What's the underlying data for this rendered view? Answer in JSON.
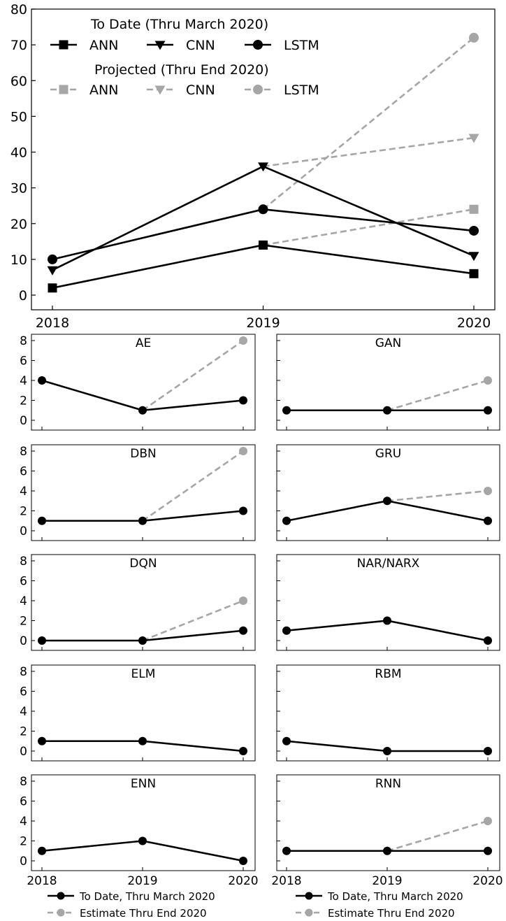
{
  "colors": {
    "to_date": "#000000",
    "projected": "#a6a6a6"
  },
  "chart_data": [
    {
      "type": "line",
      "x": [
        "2018",
        "2019",
        "2020"
      ],
      "ylim": [
        0,
        80
      ],
      "yticks": [
        0,
        10,
        20,
        30,
        40,
        50,
        60,
        70,
        80
      ],
      "grid": false,
      "legend": {
        "to_date_title": "To Date (Thru March 2020)",
        "projected_title": "Projected (Thru End 2020)",
        "placement": "top"
      },
      "series": [
        {
          "name": "ANN",
          "kind": "to_date",
          "marker": "square",
          "values": [
            2,
            14,
            6
          ]
        },
        {
          "name": "CNN",
          "kind": "to_date",
          "marker": "triangle-down",
          "values": [
            7,
            36,
            11
          ]
        },
        {
          "name": "LSTM",
          "kind": "to_date",
          "marker": "circle",
          "values": [
            10,
            24,
            18
          ]
        },
        {
          "name": "ANN",
          "kind": "projected",
          "marker": "square",
          "values": [
            null,
            14,
            24
          ]
        },
        {
          "name": "CNN",
          "kind": "projected",
          "marker": "triangle-down",
          "values": [
            null,
            36,
            44
          ]
        },
        {
          "name": "LSTM",
          "kind": "projected",
          "marker": "circle",
          "values": [
            null,
            24,
            72
          ]
        }
      ]
    },
    {
      "type": "line",
      "x": [
        "2018",
        "2019",
        "2020"
      ],
      "ylim": [
        0,
        8
      ],
      "yticks": [
        0,
        2,
        4,
        6,
        8
      ],
      "legend": {
        "to_date": "To Date, Thru March 2020",
        "estimate": "Estimate Thru End 2020",
        "placement": "bottom"
      },
      "panels": [
        {
          "title": "AE",
          "to_date": [
            4,
            1,
            2
          ],
          "estimate": [
            null,
            1,
            8
          ]
        },
        {
          "title": "GAN",
          "to_date": [
            1,
            1,
            1
          ],
          "estimate": [
            null,
            1,
            4
          ]
        },
        {
          "title": "DBN",
          "to_date": [
            1,
            1,
            2
          ],
          "estimate": [
            null,
            1,
            8
          ]
        },
        {
          "title": "GRU",
          "to_date": [
            1,
            3,
            1
          ],
          "estimate": [
            null,
            3,
            4
          ]
        },
        {
          "title": "DQN",
          "to_date": [
            0,
            0,
            1
          ],
          "estimate": [
            null,
            0,
            4
          ]
        },
        {
          "title": "NAR/NARX",
          "to_date": [
            1,
            2,
            0
          ],
          "estimate": null
        },
        {
          "title": "ELM",
          "to_date": [
            1,
            1,
            0
          ],
          "estimate": null
        },
        {
          "title": "RBM",
          "to_date": [
            1,
            0,
            0
          ],
          "estimate": null
        },
        {
          "title": "ENN",
          "to_date": [
            1,
            2,
            0
          ],
          "estimate": null
        },
        {
          "title": "RNN",
          "to_date": [
            1,
            1,
            1
          ],
          "estimate": [
            null,
            1,
            4
          ]
        }
      ]
    }
  ]
}
